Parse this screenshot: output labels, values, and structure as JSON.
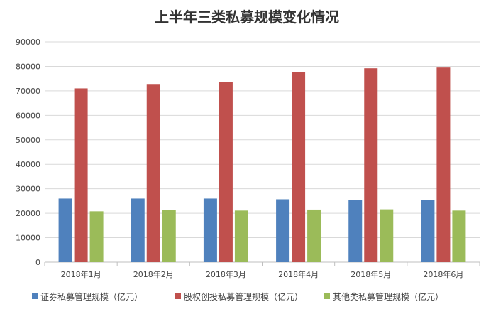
{
  "chart_data": {
    "type": "bar",
    "title": "上半年三类私募规模变化情况",
    "xlabel": "",
    "ylabel": "",
    "categories": [
      "2018年1月",
      "2018年2月",
      "2018年3月",
      "2018年4月",
      "2018年5月",
      "2018年6月"
    ],
    "series": [
      {
        "name": "证券私募管理规模（亿元）",
        "color": "#4f81bd",
        "values": [
          26000,
          26000,
          26000,
          25700,
          25300,
          25300
        ]
      },
      {
        "name": "股权创投私募管理规模（亿元）",
        "color": "#c0504d",
        "values": [
          71000,
          72800,
          73500,
          77800,
          79200,
          79500
        ]
      },
      {
        "name": "其他类私募管理规模（亿元）",
        "color": "#9bbb59",
        "values": [
          20800,
          21400,
          21100,
          21500,
          21600,
          21100
        ]
      }
    ],
    "ylim": [
      0,
      90000
    ],
    "yticks": [
      0,
      10000,
      20000,
      30000,
      40000,
      50000,
      60000,
      70000,
      80000,
      90000
    ],
    "grid": true,
    "legend_position": "bottom"
  }
}
